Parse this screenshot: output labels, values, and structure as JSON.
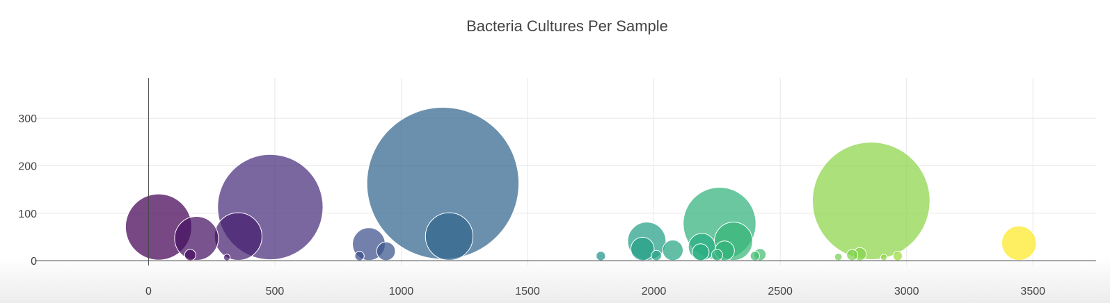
{
  "chart_data": {
    "type": "scatter",
    "title": "Bacteria Cultures Per Sample",
    "xlabel": "",
    "ylabel": "",
    "xlim": [
      -450,
      3750
    ],
    "ylim": [
      -10,
      385
    ],
    "x_ticks": [
      0,
      500,
      1000,
      1500,
      2000,
      2500,
      3000,
      3500
    ],
    "y_ticks": [
      0,
      100,
      200,
      300
    ],
    "grid": true,
    "legend": "none",
    "colorscale": "viridis",
    "bubbles": [
      {
        "x": 40,
        "y": 71
      },
      {
        "x": 190,
        "y": 47
      },
      {
        "x": 165,
        "y": 12
      },
      {
        "x": 310,
        "y": 7
      },
      {
        "x": 355,
        "y": 51
      },
      {
        "x": 482,
        "y": 113
      },
      {
        "x": 835,
        "y": 10
      },
      {
        "x": 872,
        "y": 35
      },
      {
        "x": 940,
        "y": 20
      },
      {
        "x": 1165,
        "y": 163
      },
      {
        "x": 1190,
        "y": 51
      },
      {
        "x": 1790,
        "y": 10
      },
      {
        "x": 1972,
        "y": 41
      },
      {
        "x": 1955,
        "y": 25
      },
      {
        "x": 2010,
        "y": 11
      },
      {
        "x": 2075,
        "y": 22
      },
      {
        "x": 2260,
        "y": 78
      },
      {
        "x": 2190,
        "y": 29
      },
      {
        "x": 2185,
        "y": 18
      },
      {
        "x": 2250,
        "y": 12
      },
      {
        "x": 2280,
        "y": 21
      },
      {
        "x": 2315,
        "y": 41
      },
      {
        "x": 2400,
        "y": 10
      },
      {
        "x": 2420,
        "y": 13
      },
      {
        "x": 2730,
        "y": 8
      },
      {
        "x": 2785,
        "y": 12
      },
      {
        "x": 2815,
        "y": 14
      },
      {
        "x": 2860,
        "y": 126
      },
      {
        "x": 2910,
        "y": 7
      },
      {
        "x": 2965,
        "y": 10
      },
      {
        "x": 3445,
        "y": 37
      }
    ]
  }
}
